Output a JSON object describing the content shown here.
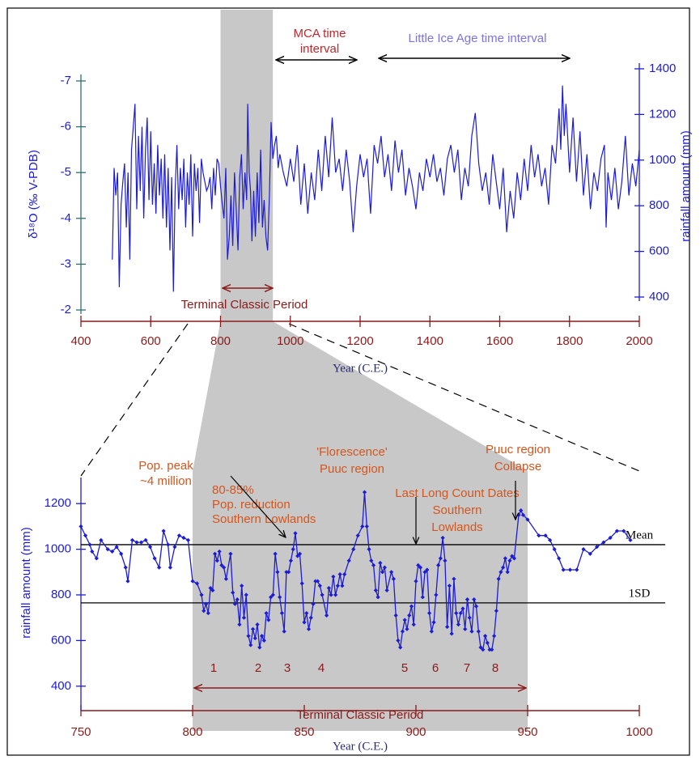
{
  "chart_data": [
    {
      "type": "line",
      "x_label": "Year (C.E.)",
      "y_label": "δ¹⁸O (‰  V-PDB)",
      "y2_label": "rainfall amount (mm)",
      "xlim": [
        400,
        2000
      ],
      "xticks": [
        400,
        600,
        800,
        1000,
        1200,
        1400,
        1600,
        1800,
        2000
      ],
      "ylim": [
        -2,
        -7
      ],
      "yticks": [
        -7,
        -6,
        -5,
        -4,
        -3,
        -2
      ],
      "y2lim": [
        400,
        1400
      ],
      "y2ticks": [
        400,
        600,
        800,
        1000,
        1200,
        1400
      ],
      "shaded_range": [
        800,
        950
      ],
      "color": "#1c1cd6",
      "x": [
        490,
        495,
        500,
        505,
        510,
        515,
        520,
        525,
        530,
        535,
        540,
        545,
        550,
        555,
        560,
        565,
        570,
        575,
        580,
        585,
        590,
        595,
        600,
        605,
        610,
        615,
        620,
        625,
        630,
        635,
        640,
        645,
        650,
        655,
        660,
        665,
        670,
        675,
        680,
        685,
        690,
        695,
        700,
        705,
        710,
        715,
        720,
        725,
        730,
        735,
        740,
        745,
        750,
        755,
        760,
        765,
        770,
        775,
        780,
        785,
        790,
        795,
        800,
        805,
        810,
        815,
        820,
        825,
        830,
        835,
        840,
        845,
        850,
        855,
        860,
        865,
        870,
        875,
        878,
        882,
        886,
        890,
        895,
        900,
        905,
        910,
        915,
        920,
        925,
        930,
        935,
        940,
        945,
        950,
        955,
        960,
        965,
        970,
        980,
        990,
        1000,
        1010,
        1020,
        1030,
        1040,
        1050,
        1060,
        1070,
        1080,
        1090,
        1100,
        1110,
        1120,
        1130,
        1140,
        1150,
        1160,
        1170,
        1180,
        1190,
        1200,
        1210,
        1220,
        1230,
        1240,
        1250,
        1260,
        1270,
        1280,
        1290,
        1300,
        1310,
        1320,
        1330,
        1340,
        1350,
        1360,
        1370,
        1380,
        1390,
        1400,
        1410,
        1420,
        1430,
        1440,
        1450,
        1460,
        1470,
        1480,
        1490,
        1500,
        1510,
        1520,
        1530,
        1540,
        1550,
        1560,
        1570,
        1580,
        1590,
        1600,
        1610,
        1620,
        1630,
        1640,
        1650,
        1660,
        1670,
        1680,
        1690,
        1700,
        1710,
        1720,
        1730,
        1740,
        1750,
        1760,
        1770,
        1775,
        1780,
        1785,
        1790,
        1800,
        1810,
        1820,
        1830,
        1840,
        1850,
        1860,
        1870,
        1880,
        1890,
        1900,
        1905,
        1910,
        1920,
        1930,
        1940,
        1950,
        1960,
        1970,
        1980,
        1990,
        2000
      ],
      "values": [
        -3.1,
        -5.1,
        -4.5,
        -5.0,
        -2.5,
        -4.3,
        -4.8,
        -5.2,
        -3.8,
        -5.0,
        -3.1,
        -5.5,
        -6.0,
        -6.5,
        -4.2,
        -5.8,
        -4.6,
        -6.0,
        -4.0,
        -5.5,
        -6.2,
        -4.4,
        -5.9,
        -4.3,
        -5.2,
        -4.1,
        -5.6,
        -4.5,
        -5.3,
        -4.0,
        -5.4,
        -3.8,
        -5.1,
        -3.3,
        -4.9,
        -2.4,
        -4.6,
        -5.6,
        -4.2,
        -5.1,
        -4.4,
        -5.3,
        -3.8,
        -5.0,
        -4.3,
        -5.4,
        -3.6,
        -5.2,
        -4.6,
        -5.1,
        -3.9,
        -5.3,
        -5.0,
        -4.8,
        -4.6,
        -4.7,
        -4.9,
        -4.2,
        -5.1,
        -4.5,
        -5.3,
        -5.2,
        -4.7,
        -4.3,
        -4.0,
        -5.1,
        -3.1,
        -3.6,
        -4.5,
        -3.4,
        -5.0,
        -4.2,
        -3.3,
        -4.9,
        -5.4,
        -4.2,
        -5.0,
        -4.4,
        -6.5,
        -5.0,
        -4.6,
        -3.5,
        -4.6,
        -3.6,
        -5.0,
        -3.9,
        -5.5,
        -3.8,
        -4.4,
        -3.6,
        -3.3,
        -4.5,
        -6.1,
        -5.3,
        -5.6,
        -5.8,
        -5.1,
        -5.4,
        -5.0,
        -4.7,
        -5.3,
        -4.8,
        -5.6,
        -4.3,
        -5.2,
        -4.1,
        -5.0,
        -4.4,
        -5.5,
        -4.6,
        -5.8,
        -4.9,
        -6.2,
        -5.0,
        -5.3,
        -4.6,
        -5.5,
        -4.8,
        -3.7,
        -4.7,
        -5.4,
        -4.9,
        -5.3,
        -4.1,
        -5.6,
        -5.2,
        -5.8,
        -4.9,
        -5.4,
        -4.6,
        -5.7,
        -5.0,
        -5.5,
        -4.5,
        -5.1,
        -4.7,
        -4.2,
        -5.0,
        -4.6,
        -5.3,
        -4.9,
        -5.4,
        -4.8,
        -5.1,
        -4.5,
        -5.3,
        -5.6,
        -5.0,
        -5.5,
        -4.4,
        -5.1,
        -4.7,
        -5.8,
        -6.3,
        -5.2,
        -4.6,
        -5.0,
        -4.3,
        -5.4,
        -4.8,
        -4.2,
        -5.1,
        -3.7,
        -4.6,
        -4.0,
        -5.0,
        -4.4,
        -5.3,
        -4.6,
        -5.6,
        -4.9,
        -5.4,
        -4.7,
        -5.1,
        -4.3,
        -5.6,
        -5.2,
        -6.4,
        -5.5,
        -6.9,
        -5.8,
        -6.5,
        -5.0,
        -6.2,
        -4.8,
        -5.9,
        -4.5,
        -5.4,
        -4.2,
        -5.0,
        -4.6,
        -5.3,
        -5.6,
        -3.8,
        -5.0,
        -4.4,
        -5.1,
        -4.2,
        -4.8,
        -5.8,
        -4.5,
        -5.2,
        -4.7,
        -5.5
      ],
      "annotations": [
        {
          "text": [
            "MCA time",
            "interval"
          ]
        },
        {
          "text": [
            "Little Ice Age time interval"
          ]
        },
        {
          "text": [
            "Terminal Classic Period"
          ]
        }
      ]
    },
    {
      "type": "line",
      "x_label": "Year (C.E.)",
      "y_label": "rainfall amount (mm)",
      "xlim": [
        750,
        1000
      ],
      "xticks": [
        750,
        800,
        850,
        900,
        950,
        1000
      ],
      "ylim": [
        300,
        1300
      ],
      "yticks": [
        400,
        600,
        800,
        1000,
        1200
      ],
      "shaded_range": [
        800,
        950
      ],
      "color": "#1c1cd6",
      "reference_lines": [
        {
          "label": "Mean",
          "value": 1020
        },
        {
          "label": "1SD",
          "value": 765
        }
      ],
      "x": [
        750,
        752,
        754,
        755,
        757,
        759,
        762,
        764,
        766,
        768,
        770,
        771,
        773,
        775,
        777,
        779,
        781,
        783,
        785,
        787,
        789,
        790,
        792,
        794,
        796,
        798,
        800,
        802,
        804,
        805,
        806,
        807,
        808,
        809,
        810,
        811,
        812,
        813,
        814,
        815,
        817,
        818,
        819,
        820,
        821,
        822,
        823,
        824,
        825,
        826,
        827,
        828,
        829,
        830,
        831,
        832,
        833,
        834,
        835,
        836,
        837,
        838,
        839,
        840,
        841,
        842,
        843,
        844,
        845,
        846,
        847,
        848,
        849,
        850,
        851,
        852,
        853,
        854,
        855,
        856,
        857,
        858,
        860,
        861,
        862,
        863,
        864,
        865,
        866,
        867,
        868,
        870,
        872,
        874,
        876,
        877,
        878,
        879,
        880,
        881,
        882,
        883,
        884,
        885,
        886,
        887,
        889,
        890,
        891,
        892,
        893,
        894,
        895,
        896,
        897,
        898,
        899,
        900,
        901,
        902,
        903,
        904,
        905,
        906,
        907,
        908,
        909,
        910,
        911,
        912,
        913,
        914,
        915,
        916,
        917,
        918,
        919,
        920,
        921,
        922,
        923,
        924,
        925,
        926,
        927,
        928,
        929,
        930,
        931,
        932,
        933,
        934,
        935,
        936,
        937,
        938,
        939,
        940,
        941,
        942,
        943,
        944,
        946,
        947,
        948,
        950,
        955,
        958,
        960,
        962,
        964,
        966,
        969,
        972,
        975,
        978,
        981,
        984,
        987,
        990,
        993,
        996
      ],
      "values": [
        1100,
        1060,
        1020,
        990,
        960,
        1040,
        1000,
        990,
        1010,
        980,
        920,
        860,
        1040,
        1030,
        1030,
        1040,
        1010,
        960,
        920,
        1080,
        1020,
        920,
        1010,
        1060,
        1050,
        1040,
        860,
        850,
        800,
        730,
        760,
        720,
        830,
        820,
        980,
        950,
        990,
        930,
        920,
        870,
        980,
        810,
        760,
        780,
        670,
        840,
        700,
        800,
        620,
        580,
        650,
        610,
        670,
        570,
        620,
        600,
        720,
        690,
        790,
        800,
        980,
        900,
        790,
        720,
        640,
        900,
        900,
        950,
        1000,
        1070,
        970,
        980,
        850,
        680,
        720,
        650,
        700,
        760,
        860,
        860,
        840,
        800,
        710,
        830,
        800,
        880,
        800,
        840,
        890,
        840,
        890,
        950,
        1000,
        1060,
        1100,
        1250,
        1100,
        1000,
        950,
        930,
        820,
        790,
        940,
        900,
        920,
        820,
        900,
        870,
        710,
        600,
        570,
        640,
        690,
        650,
        710,
        750,
        670,
        860,
        930,
        920,
        790,
        900,
        910,
        720,
        640,
        680,
        800,
        930,
        960,
        1050,
        950,
        660,
        840,
        630,
        870,
        720,
        670,
        720,
        740,
        650,
        780,
        700,
        640,
        780,
        750,
        640,
        570,
        560,
        620,
        590,
        560,
        560,
        620,
        730,
        870,
        900,
        920,
        960,
        900,
        950,
        970,
        960,
        1150,
        1170,
        1150,
        1130,
        1060,
        1060,
        1040,
        1000,
        960,
        910,
        910,
        910,
        1000,
        980,
        1010,
        1030,
        1050,
        1080,
        1080,
        1040
      ],
      "annotations": [
        {
          "text": [
            "Pop. peak",
            "~4 million"
          ]
        },
        {
          "text": [
            "80-85%",
            "Pop. reduction",
            "Southern Lowlands"
          ]
        },
        {
          "text": [
            "'Florescence'",
            "Puuc region"
          ]
        },
        {
          "text": [
            "Last Long Count Dates",
            "Southern",
            "Lowlands"
          ]
        },
        {
          "text": [
            "Puuc region",
            "Collapse"
          ]
        },
        {
          "text": [
            "Terminal Classic Period"
          ]
        }
      ],
      "drought_labels": [
        "1",
        "2",
        "3",
        "4",
        "5",
        "6",
        "7",
        "8"
      ]
    }
  ]
}
